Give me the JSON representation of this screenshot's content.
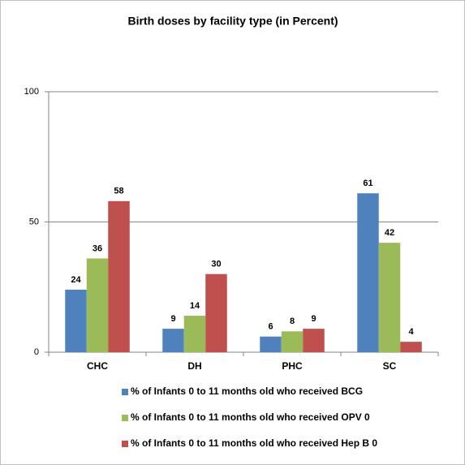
{
  "chart_data": {
    "type": "bar",
    "title": "Birth doses by facility type (in Percent)",
    "categories": [
      "CHC",
      "DH",
      "PHC",
      "SC"
    ],
    "series": [
      {
        "name": "% of Infants 0 to 11 months old who received BCG",
        "color": "#4f81bd",
        "values": [
          24,
          9,
          6,
          61
        ]
      },
      {
        "name": "% of Infants 0 to 11 months old who received OPV 0",
        "color": "#9bbb59",
        "values": [
          36,
          14,
          8,
          42
        ]
      },
      {
        "name": "% of Infants 0 to 11 months old who received Hep B 0",
        "color": "#c0504d",
        "values": [
          58,
          30,
          9,
          4
        ]
      }
    ],
    "ylim": [
      0,
      100
    ],
    "yticks": [
      0,
      50,
      100
    ],
    "grid": true,
    "legend": "bottom"
  }
}
